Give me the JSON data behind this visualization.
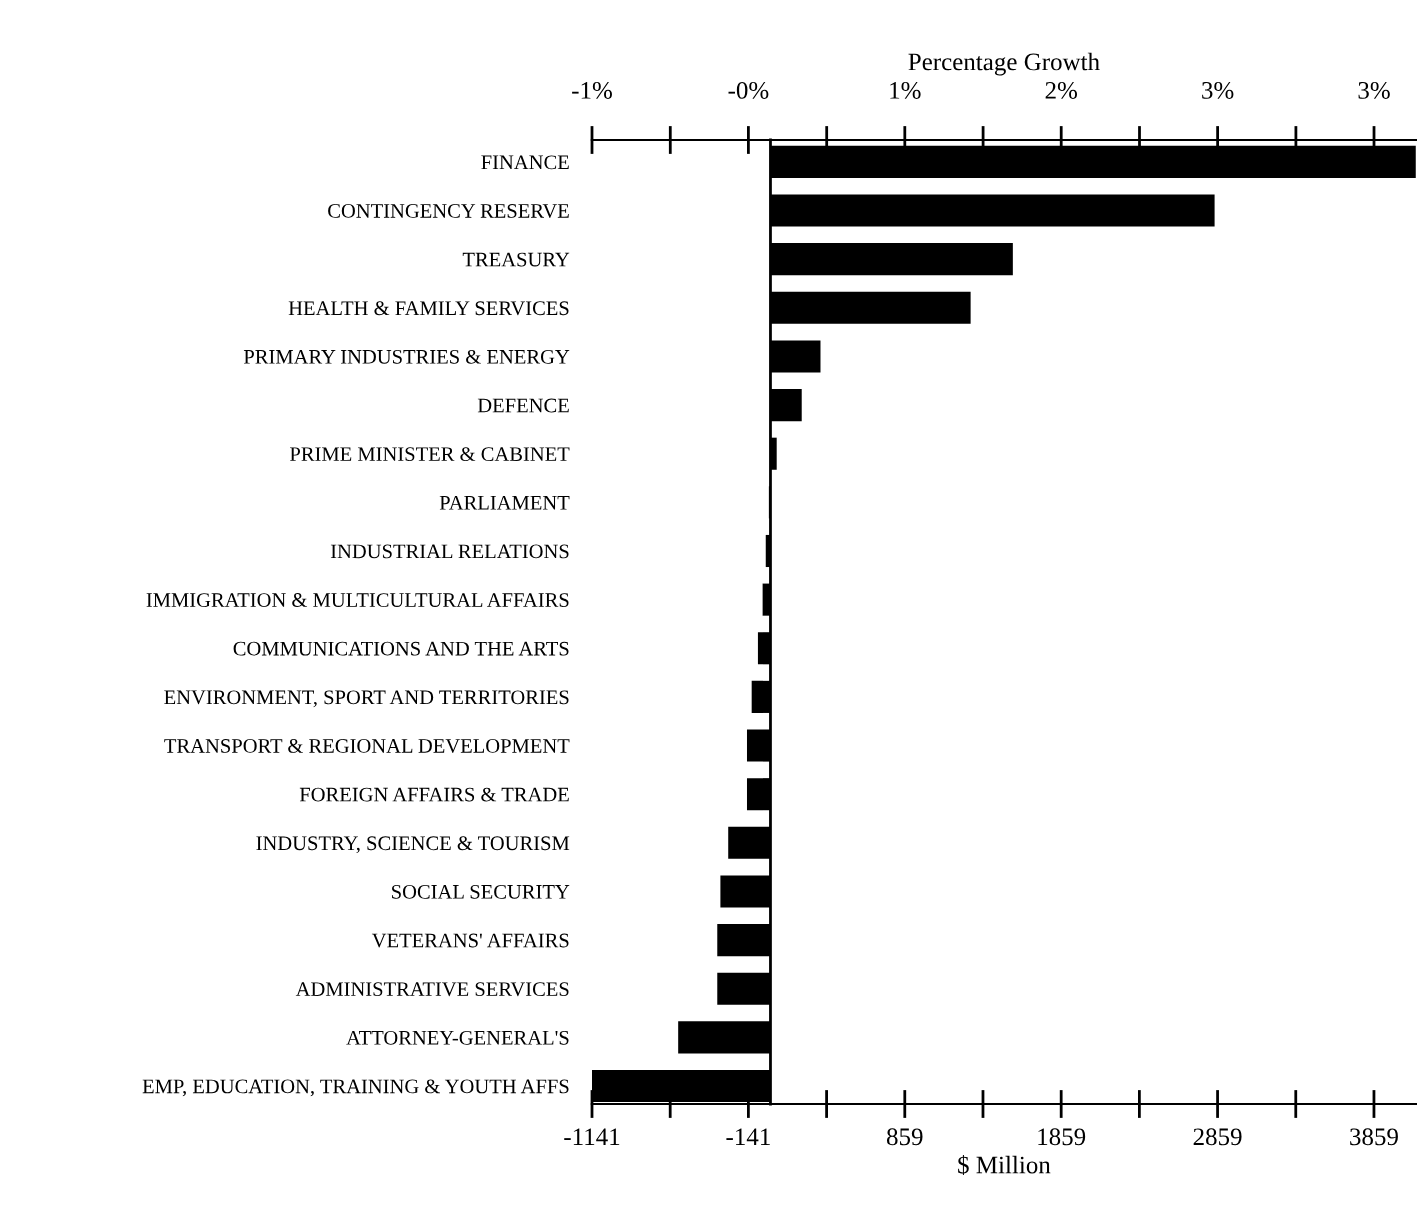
{
  "chart_data": {
    "type": "bar",
    "orientation": "horizontal",
    "categories": [
      "FINANCE",
      "CONTINGENCY RESERVE",
      "TREASURY",
      "HEALTH & FAMILY SERVICES",
      "PRIMARY INDUSTRIES & ENERGY",
      "DEFENCE",
      "PRIME MINISTER & CABINET",
      "PARLIAMENT",
      "INDUSTRIAL RELATIONS",
      "IMMIGRATION & MULTICULTURAL AFFAIRS",
      "COMMUNICATIONS AND THE ARTS",
      "ENVIRONMENT, SPORT AND TERRITORIES",
      "TRANSPORT & REGIONAL DEVELOPMENT",
      "FOREIGN AFFAIRS & TRADE",
      "INDUSTRY, SCIENCE & TOURISM",
      "SOCIAL SECURITY",
      "VETERANS' AFFAIRS",
      "ADMINISTRATIVE SERVICES",
      "ATTORNEY-GENERAL'S",
      "EMP, EDUCATION, TRAINING & YOUTH AFFS"
    ],
    "values": [
      4127,
      2840,
      1550,
      1280,
      320,
      200,
      40,
      -10,
      -30,
      -50,
      -80,
      -120,
      -150,
      -150,
      -270,
      -320,
      -340,
      -340,
      -590,
      -1141
    ],
    "color": "#000000",
    "xlabel": "$ Million",
    "x2label": "Percentage Growth",
    "xlim": [
      -1141,
      4127
    ],
    "xticks": [
      -1141,
      {
        "value": -641,
        "label": null
      },
      -141,
      {
        "value": 359,
        "label": null
      },
      859,
      {
        "value": 1359,
        "label": null
      },
      1859,
      {
        "value": 2359,
        "label": null
      },
      2859,
      {
        "value": 3359,
        "label": null
      },
      3859
    ],
    "x2lim": [
      -1.019,
      3.685
    ],
    "x2ticks": [
      {
        "value": -1.019,
        "label": "-1%"
      },
      {
        "value": -0.572,
        "label": null
      },
      {
        "value": -0.126,
        "label": "-0%"
      },
      {
        "value": 0.321,
        "label": null
      },
      {
        "value": 0.767,
        "label": "1%"
      },
      {
        "value": 1.214,
        "label": null
      },
      {
        "value": 1.66,
        "label": "2%"
      },
      {
        "value": 2.107,
        "label": null
      },
      {
        "value": 2.553,
        "label": "3%"
      },
      {
        "value": 3.0,
        "label": null
      },
      {
        "value": 3.446,
        "label": "3%"
      }
    ],
    "grid": false
  }
}
